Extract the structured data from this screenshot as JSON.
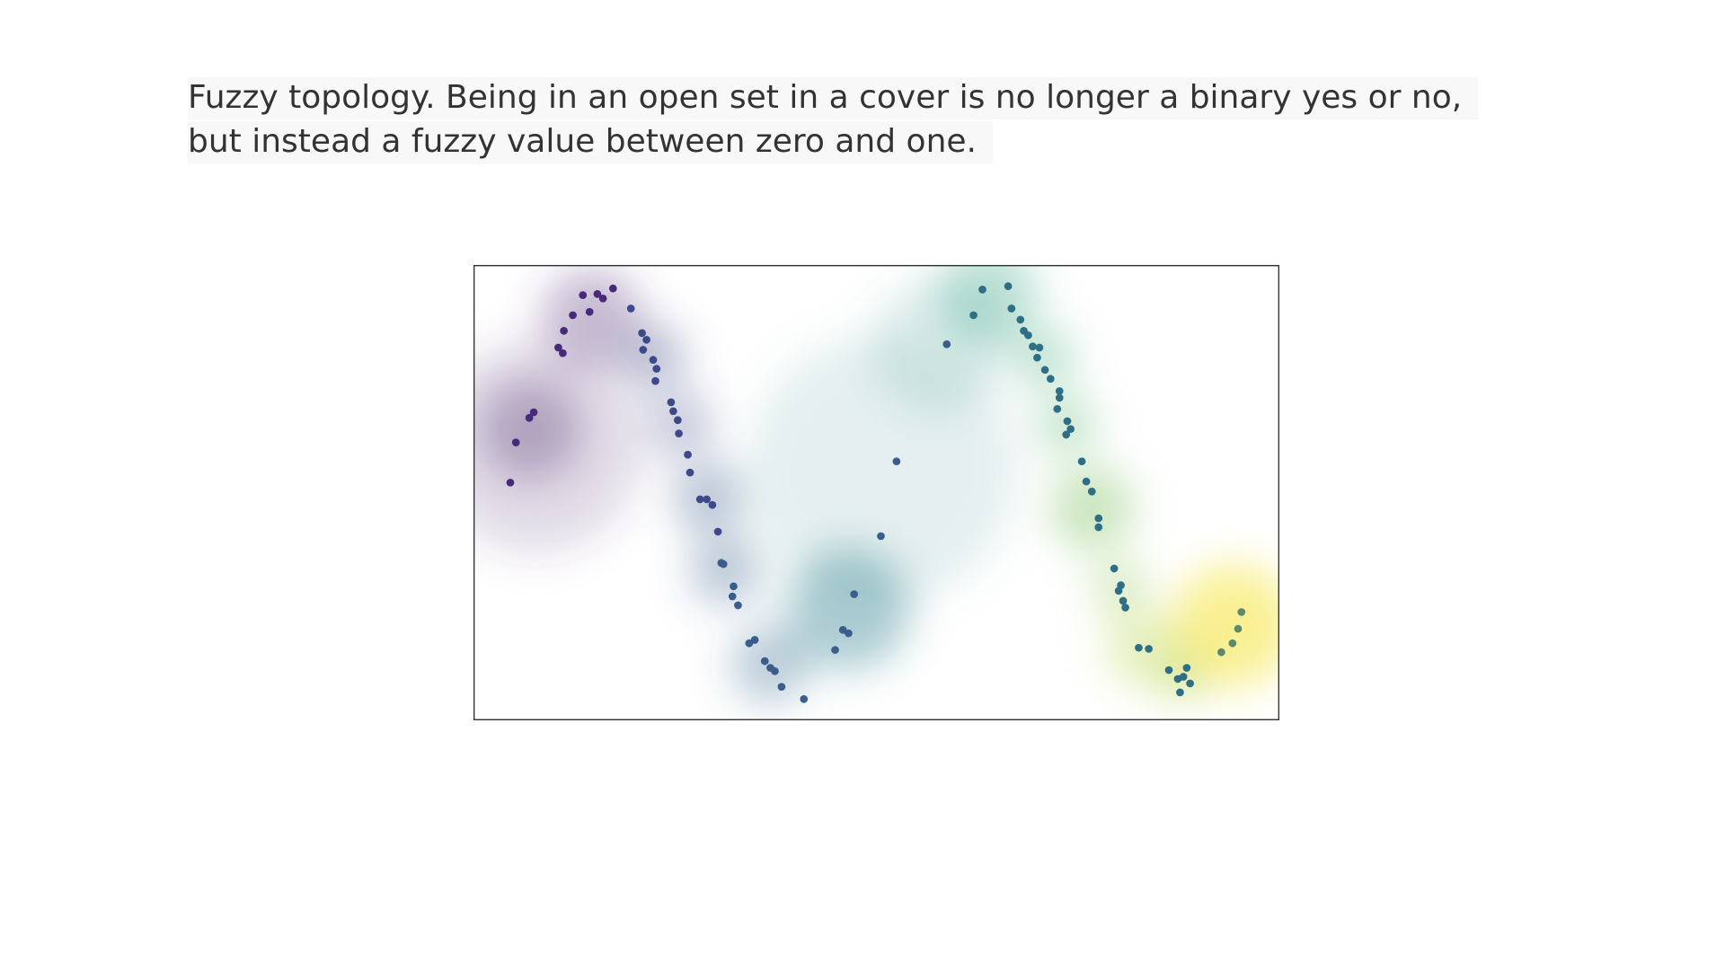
{
  "text": {
    "caption": "Fuzzy topology. Being in an open set in a cover is no longer a binary yes or no, but instead a fuzzy value between zero and one."
  }
}
